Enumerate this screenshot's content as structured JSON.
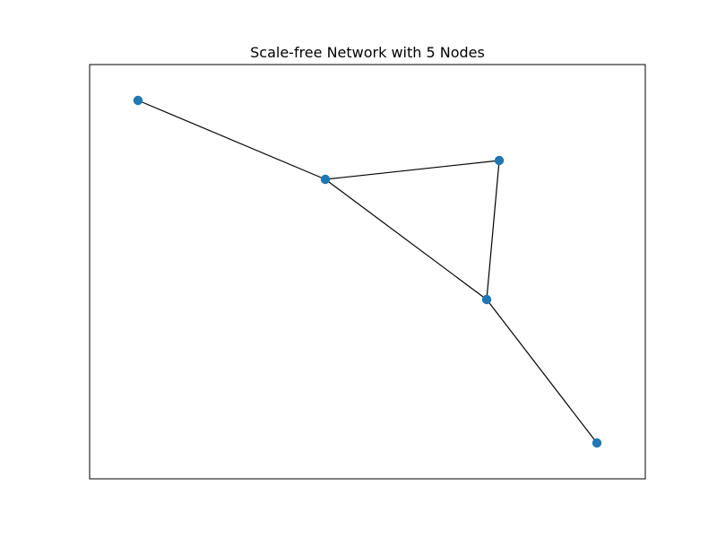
{
  "diagram": {
    "title": "Scale-free Network with 5 Nodes",
    "node_color": "#1f77b4",
    "edge_color": "#000000",
    "nodes": [
      {
        "id": "n0"
      },
      {
        "id": "n1"
      },
      {
        "id": "n2"
      },
      {
        "id": "n3"
      },
      {
        "id": "n4"
      }
    ],
    "edges": [
      {
        "source": "n0",
        "target": "n1"
      },
      {
        "source": "n1",
        "target": "n2"
      },
      {
        "source": "n1",
        "target": "n3"
      },
      {
        "source": "n2",
        "target": "n3"
      },
      {
        "source": "n3",
        "target": "n4"
      }
    ]
  }
}
